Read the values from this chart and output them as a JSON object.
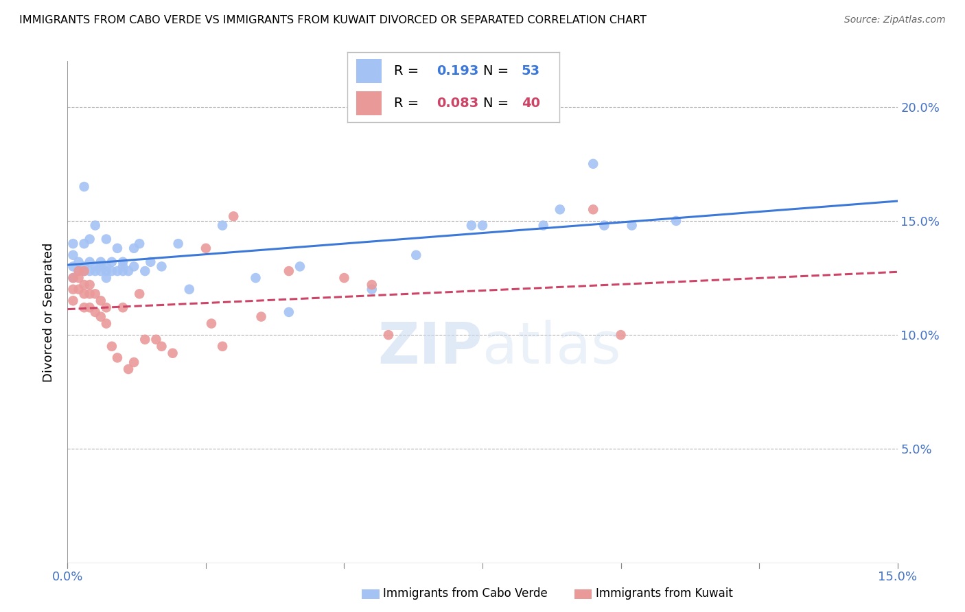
{
  "title": "IMMIGRANTS FROM CABO VERDE VS IMMIGRANTS FROM KUWAIT DIVORCED OR SEPARATED CORRELATION CHART",
  "source": "Source: ZipAtlas.com",
  "ylabel": "Divorced or Separated",
  "xmin": 0.0,
  "xmax": 0.15,
  "ymin": 0.0,
  "ymax": 0.22,
  "yticks": [
    0.0,
    0.05,
    0.1,
    0.15,
    0.2
  ],
  "ytick_labels": [
    "",
    "5.0%",
    "10.0%",
    "15.0%",
    "20.0%"
  ],
  "xticks": [
    0.0,
    0.05,
    0.1,
    0.15
  ],
  "xtick_labels": [
    "0.0%",
    "",
    "",
    "15.0%"
  ],
  "legend_blue_r": "0.193",
  "legend_blue_n": "53",
  "legend_pink_r": "0.083",
  "legend_pink_n": "40",
  "blue_color": "#a4c2f4",
  "pink_color": "#ea9999",
  "blue_line_color": "#3c78d8",
  "pink_line_color": "#cc4466",
  "axis_color": "#4472c4",
  "grid_color": "#b0b0b0",
  "cabo_verde_x": [
    0.001,
    0.001,
    0.001,
    0.001,
    0.002,
    0.002,
    0.003,
    0.003,
    0.003,
    0.003,
    0.004,
    0.004,
    0.004,
    0.005,
    0.005,
    0.005,
    0.006,
    0.006,
    0.006,
    0.007,
    0.007,
    0.007,
    0.007,
    0.008,
    0.008,
    0.009,
    0.009,
    0.01,
    0.01,
    0.01,
    0.011,
    0.012,
    0.012,
    0.013,
    0.014,
    0.015,
    0.017,
    0.02,
    0.022,
    0.028,
    0.034,
    0.04,
    0.042,
    0.055,
    0.063,
    0.073,
    0.075,
    0.086,
    0.089,
    0.095,
    0.097,
    0.102,
    0.11
  ],
  "cabo_verde_y": [
    0.125,
    0.13,
    0.135,
    0.14,
    0.128,
    0.132,
    0.128,
    0.13,
    0.14,
    0.165,
    0.128,
    0.132,
    0.142,
    0.128,
    0.13,
    0.148,
    0.128,
    0.13,
    0.132,
    0.125,
    0.128,
    0.13,
    0.142,
    0.128,
    0.132,
    0.128,
    0.138,
    0.128,
    0.13,
    0.132,
    0.128,
    0.13,
    0.138,
    0.14,
    0.128,
    0.132,
    0.13,
    0.14,
    0.12,
    0.148,
    0.125,
    0.11,
    0.13,
    0.12,
    0.135,
    0.148,
    0.148,
    0.148,
    0.155,
    0.175,
    0.148,
    0.148,
    0.15
  ],
  "kuwait_x": [
    0.001,
    0.001,
    0.001,
    0.002,
    0.002,
    0.002,
    0.003,
    0.003,
    0.003,
    0.003,
    0.004,
    0.004,
    0.004,
    0.005,
    0.005,
    0.006,
    0.006,
    0.007,
    0.007,
    0.008,
    0.009,
    0.01,
    0.011,
    0.012,
    0.013,
    0.014,
    0.016,
    0.017,
    0.019,
    0.025,
    0.026,
    0.028,
    0.03,
    0.035,
    0.04,
    0.05,
    0.055,
    0.058,
    0.095,
    0.1
  ],
  "kuwait_y": [
    0.125,
    0.12,
    0.115,
    0.128,
    0.125,
    0.12,
    0.128,
    0.122,
    0.118,
    0.112,
    0.122,
    0.118,
    0.112,
    0.118,
    0.11,
    0.115,
    0.108,
    0.112,
    0.105,
    0.095,
    0.09,
    0.112,
    0.085,
    0.088,
    0.118,
    0.098,
    0.098,
    0.095,
    0.092,
    0.138,
    0.105,
    0.095,
    0.152,
    0.108,
    0.128,
    0.125,
    0.122,
    0.1,
    0.155,
    0.1
  ]
}
